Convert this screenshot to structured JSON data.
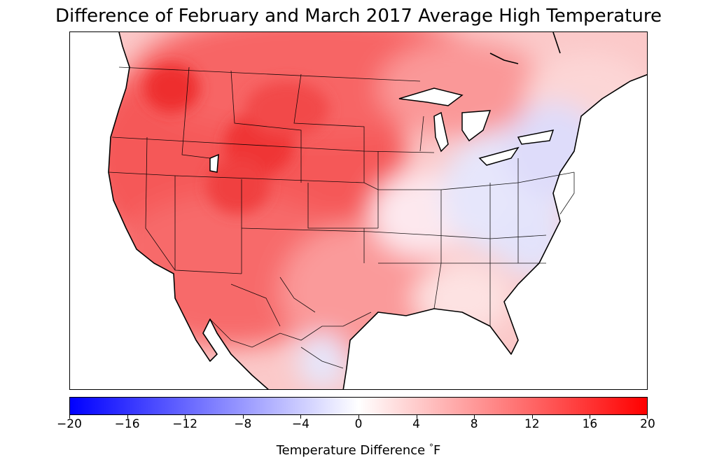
{
  "title": "Difference of February and March 2017 Average High Temperature",
  "colorbar": {
    "label_prefix": "Temperature Difference ",
    "label_degree": "°",
    "label_unit": "F",
    "min": -20,
    "max": 20,
    "ticks": [
      "−20",
      "−16",
      "−12",
      "−8",
      "−4",
      "0",
      "4",
      "8",
      "12",
      "16",
      "20"
    ],
    "colors": {
      "low": "#0000ff",
      "mid": "#ffffff",
      "high": "#ff0000"
    }
  },
  "map": {
    "region": "contiguous United States, southern Canada, northern Mexico",
    "colors": {
      "warm_strong": "#ef3a3a",
      "warm": "#f76060",
      "warm_light": "#fbb7b7",
      "neutral": "#fdf1f1",
      "cool_light": "#dcdcfa",
      "land_border": "#000000"
    }
  }
}
